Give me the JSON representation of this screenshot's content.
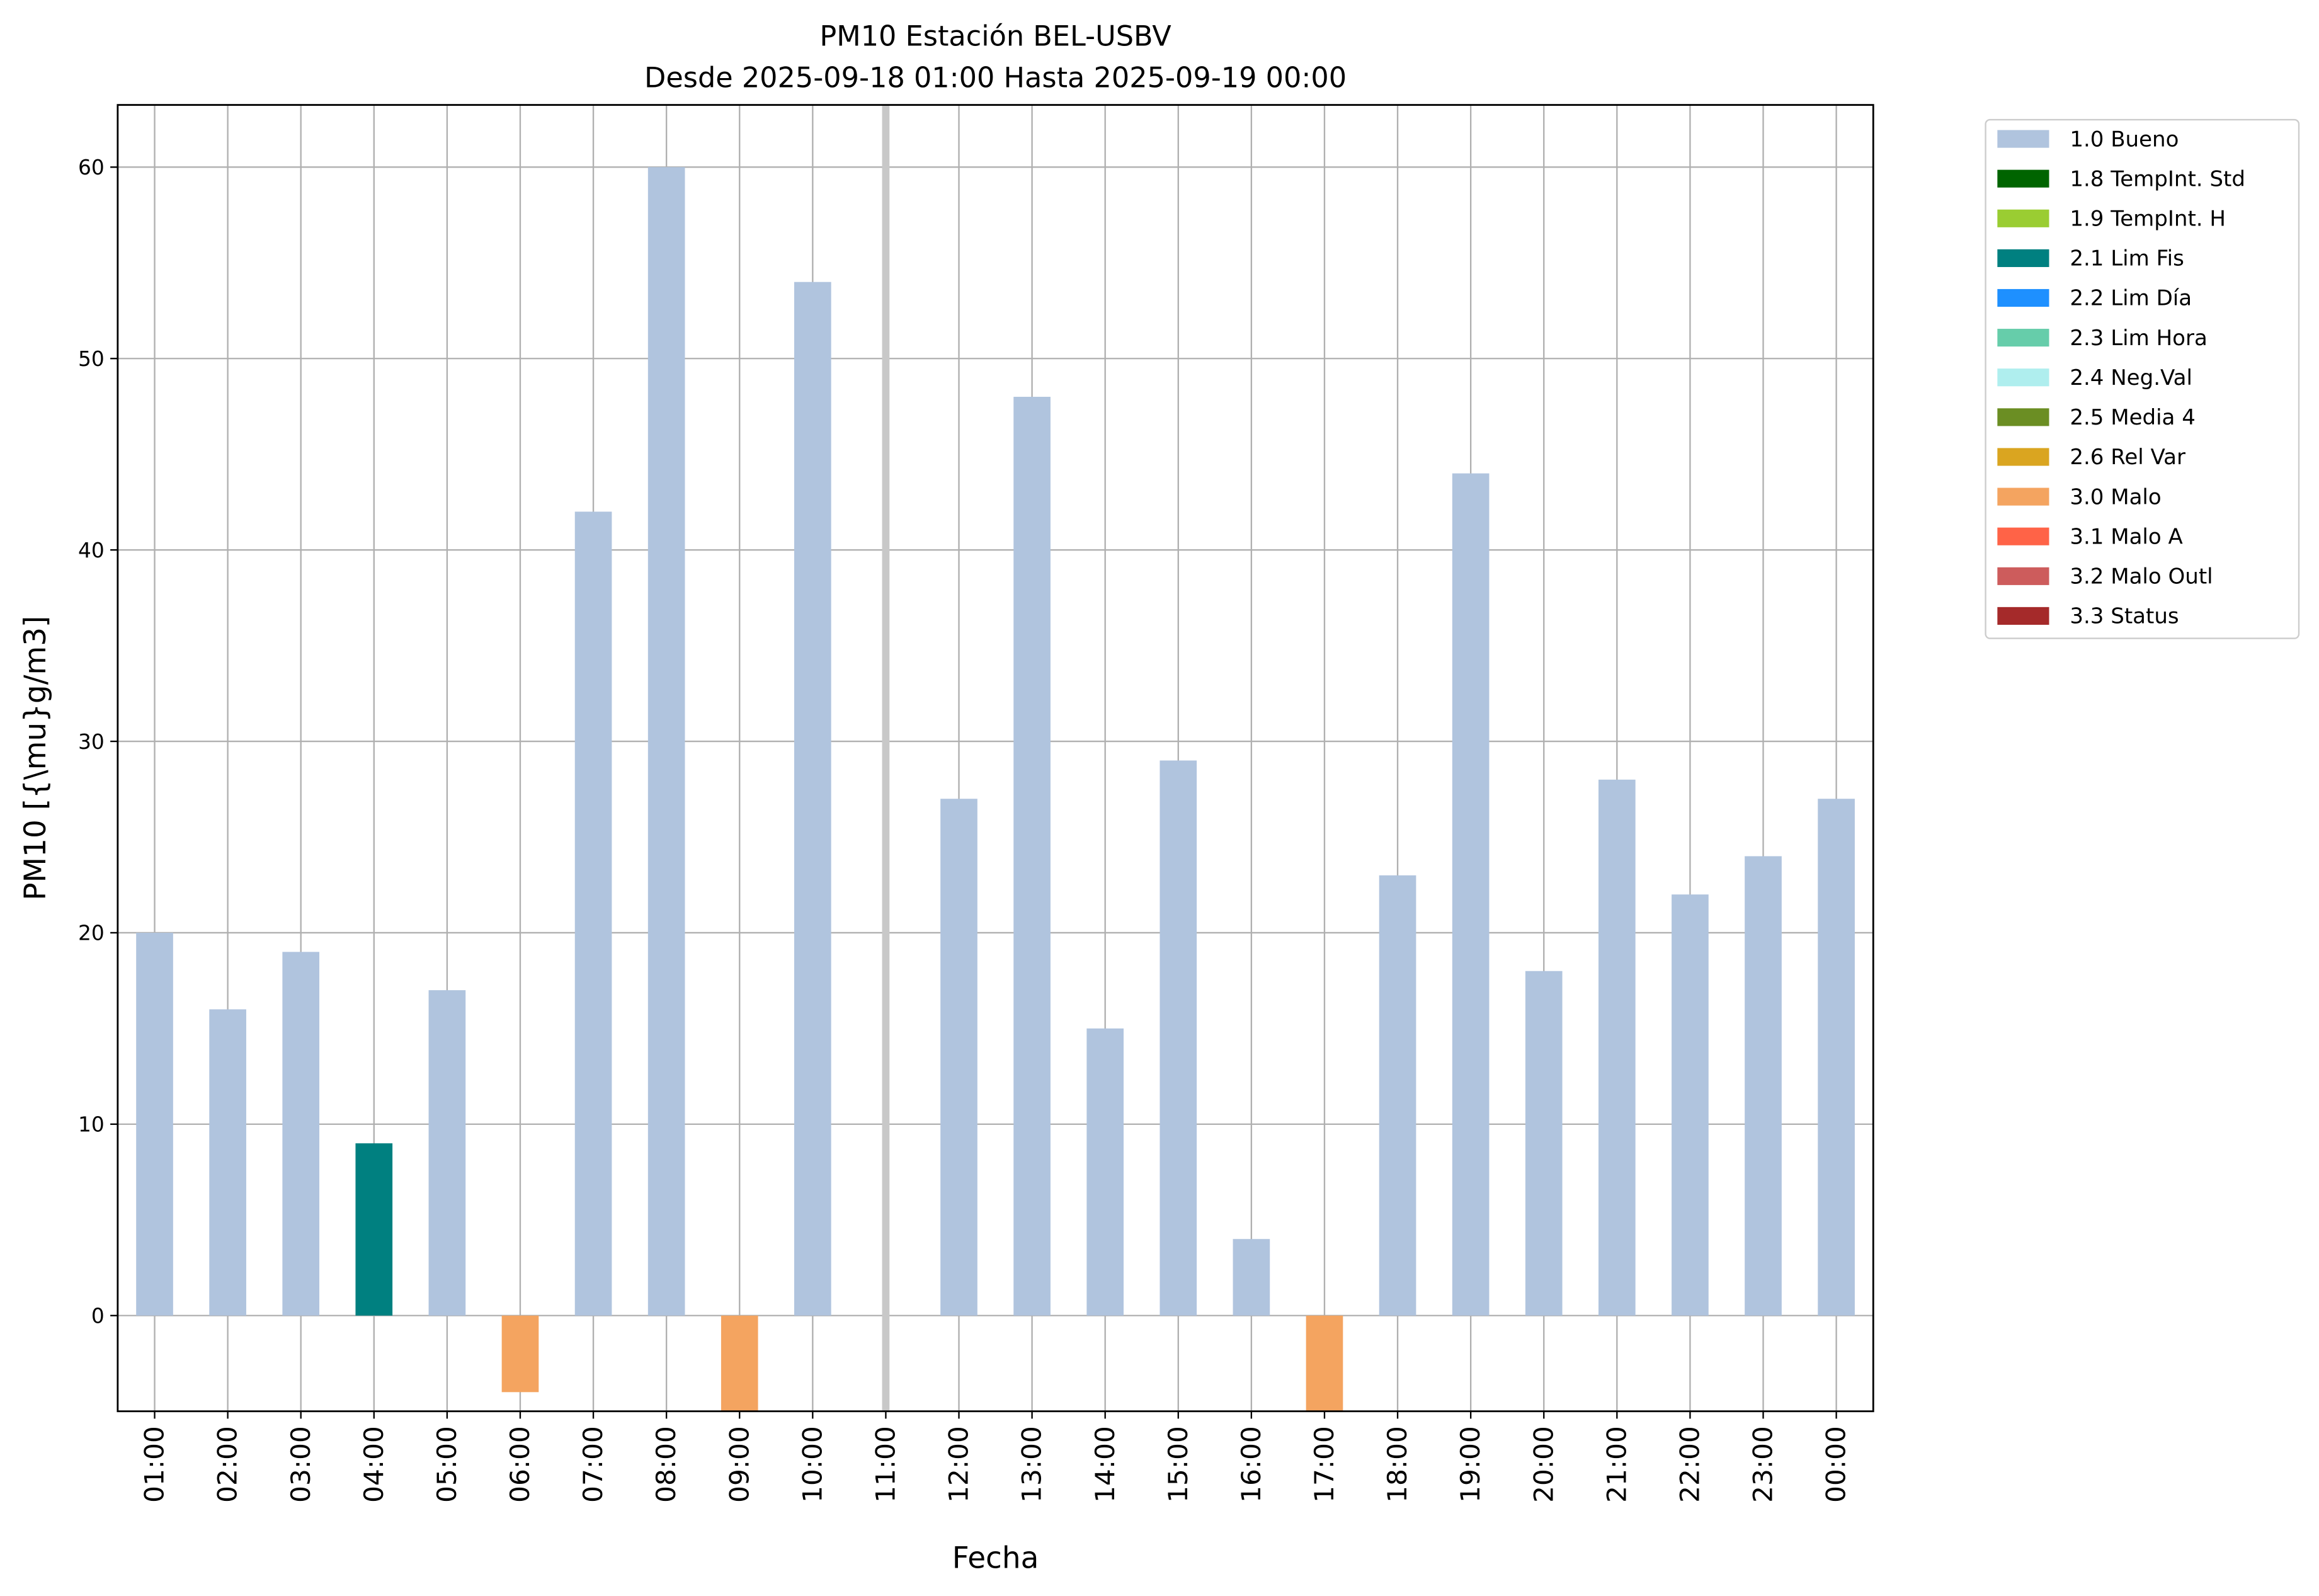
{
  "chart_data": {
    "type": "bar",
    "title": "PM10 Estación BEL-USBV",
    "subtitle": "Desde 2025-09-18 01:00 Hasta 2025-09-19 00:00",
    "xlabel": "Fecha",
    "ylabel": "PM10 [{\\mu}g/m3]",
    "ylim": [
      -5,
      63.25
    ],
    "yticks": [
      0,
      10,
      20,
      30,
      40,
      50,
      60
    ],
    "grid": true,
    "legend_position": "outside-right-top",
    "categories": [
      "01:00",
      "02:00",
      "03:00",
      "04:00",
      "05:00",
      "06:00",
      "07:00",
      "08:00",
      "09:00",
      "10:00",
      "11:00",
      "12:00",
      "13:00",
      "14:00",
      "15:00",
      "16:00",
      "17:00",
      "18:00",
      "19:00",
      "20:00",
      "21:00",
      "22:00",
      "23:00",
      "00:00"
    ],
    "values": [
      20,
      16,
      19,
      9,
      17,
      -4,
      42,
      60,
      -5,
      54,
      null,
      27,
      48,
      15,
      29,
      4,
      -5,
      23,
      44,
      18,
      28,
      22,
      24,
      27
    ],
    "flags": [
      "1.0",
      "1.0",
      "1.0",
      "2.1",
      "1.0",
      "3.0",
      "1.0",
      "1.0",
      "3.0",
      "1.0",
      null,
      "1.0",
      "1.0",
      "1.0",
      "1.0",
      "1.0",
      "3.0",
      "1.0",
      "1.0",
      "1.0",
      "1.0",
      "1.0",
      "1.0",
      "1.0"
    ],
    "marker_line_at": "11:00",
    "legend": [
      {
        "code": "1.0",
        "label": "1.0 Bueno",
        "color": "#b0c4de"
      },
      {
        "code": "1.8",
        "label": "1.8 TempInt. Std",
        "color": "#006400"
      },
      {
        "code": "1.9",
        "label": "1.9 TempInt. H",
        "color": "#9acd32"
      },
      {
        "code": "2.1",
        "label": "2.1 Lim Fis",
        "color": "#008080"
      },
      {
        "code": "2.2",
        "label": "2.2 Lim Día",
        "color": "#1e90ff"
      },
      {
        "code": "2.3",
        "label": "2.3 Lim Hora",
        "color": "#66cdaa"
      },
      {
        "code": "2.4",
        "label": "2.4 Neg.Val",
        "color": "#afeeee"
      },
      {
        "code": "2.5",
        "label": "2.5 Media 4",
        "color": "#6b8e23"
      },
      {
        "code": "2.6",
        "label": "2.6 Rel Var",
        "color": "#daa520"
      },
      {
        "code": "3.0",
        "label": "3.0 Malo",
        "color": "#f4a460"
      },
      {
        "code": "3.1",
        "label": "3.1 Malo A",
        "color": "#ff6347"
      },
      {
        "code": "3.2",
        "label": "3.2 Malo Outl",
        "color": "#cd5c5c"
      },
      {
        "code": "3.3",
        "label": "3.3 Status",
        "color": "#a52a2a"
      }
    ]
  }
}
